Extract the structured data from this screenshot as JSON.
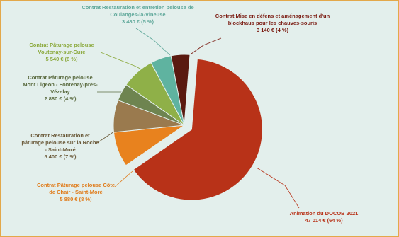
{
  "chart_data": {
    "type": "pie",
    "categories": [
      "Animation du DOCOB 2021",
      "Contrat Pâturage pelouse Côte de Chair - Saint-Moré",
      "Contrat Restauration et pâturage pelouse sur la Roche - Saint-Moré",
      "Contrat Pâturage pelouse Mont Ligeon - Fontenay-près-Vézelay",
      "Contrat Pâturage pelouse Voutenay-sur-Cure",
      "Contrat Restauration et entretien pelouse de Coulanges-la-Vineuse",
      "Contrat Mise en défens et aménagement d'un blockhaus pour les chauves-souris"
    ],
    "values": [
      47014,
      5880,
      5400,
      2880,
      5540,
      3480,
      3140
    ],
    "value_labels": [
      "47 014 € (64 %)",
      "5 880 € (8 %)",
      "5 400 € (7 %)",
      "2 880 € (4 %)",
      "5 540 € (8 %)",
      "3 480 € (5 %)",
      "3 140 € (4 %)"
    ],
    "colors": [
      "#b83218",
      "#e8821e",
      "#9a7a4e",
      "#6e8450",
      "#8fb048",
      "#5fb3a0",
      "#5a1a10"
    ],
    "exploded": [
      0
    ]
  }
}
